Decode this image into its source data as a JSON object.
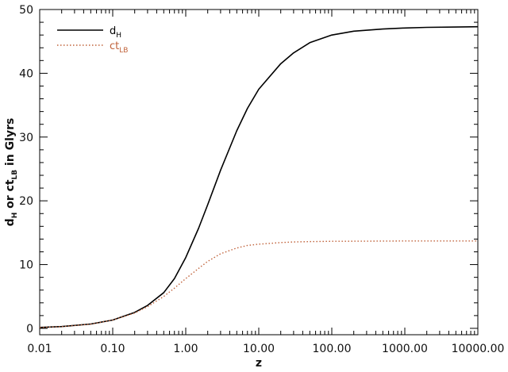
{
  "chart_data": {
    "type": "line",
    "title": "",
    "xlabel": "z",
    "ylabel": {
      "main": "d",
      "main_sub": "H",
      "connector": " or ct",
      "connector_sub": "LB",
      "suffix": " in Glyrs"
    },
    "x_scale": "log",
    "xlim": [
      0.01,
      10000
    ],
    "ylim": [
      -1,
      50
    ],
    "x_ticks": [
      0.01,
      0.1,
      1,
      10,
      100,
      1000,
      10000
    ],
    "x_tick_labels": [
      "0.01",
      "0.10",
      "1.00",
      "10.00",
      "100.00",
      "1000.00",
      "10000.00"
    ],
    "y_ticks": [
      0,
      10,
      20,
      30,
      40,
      50
    ],
    "y_tick_labels": [
      "0",
      "10",
      "20",
      "30",
      "40",
      "50"
    ],
    "grid": false,
    "legend_position": "top-left",
    "series": [
      {
        "name": "d",
        "name_sub": "H",
        "color": "#000000",
        "style": "solid",
        "x": [
          0.01,
          0.02,
          0.05,
          0.1,
          0.2,
          0.3,
          0.5,
          0.7,
          1,
          1.5,
          2,
          3,
          5,
          7,
          10,
          20,
          30,
          50,
          100,
          200,
          500,
          1000,
          2000,
          5000,
          10000
        ],
        "y": [
          0.14,
          0.28,
          0.68,
          1.3,
          2.5,
          3.6,
          5.6,
          7.8,
          11.1,
          15.7,
          19.4,
          24.8,
          31.0,
          34.5,
          37.5,
          41.5,
          43.2,
          44.8,
          46.0,
          46.6,
          46.95,
          47.1,
          47.2,
          47.25,
          47.3
        ]
      },
      {
        "name": "ct",
        "name_sub": "LB",
        "color": "#c0623a",
        "style": "dotted",
        "x": [
          0.01,
          0.02,
          0.05,
          0.1,
          0.2,
          0.3,
          0.5,
          0.7,
          1,
          1.5,
          2,
          3,
          5,
          7,
          10,
          20,
          30,
          50,
          100,
          1000,
          10000
        ],
        "y": [
          0.14,
          0.27,
          0.66,
          1.3,
          2.4,
          3.4,
          5.0,
          6.3,
          7.8,
          9.4,
          10.5,
          11.7,
          12.6,
          13.0,
          13.2,
          13.45,
          13.55,
          13.6,
          13.65,
          13.7,
          13.7
        ]
      }
    ]
  }
}
